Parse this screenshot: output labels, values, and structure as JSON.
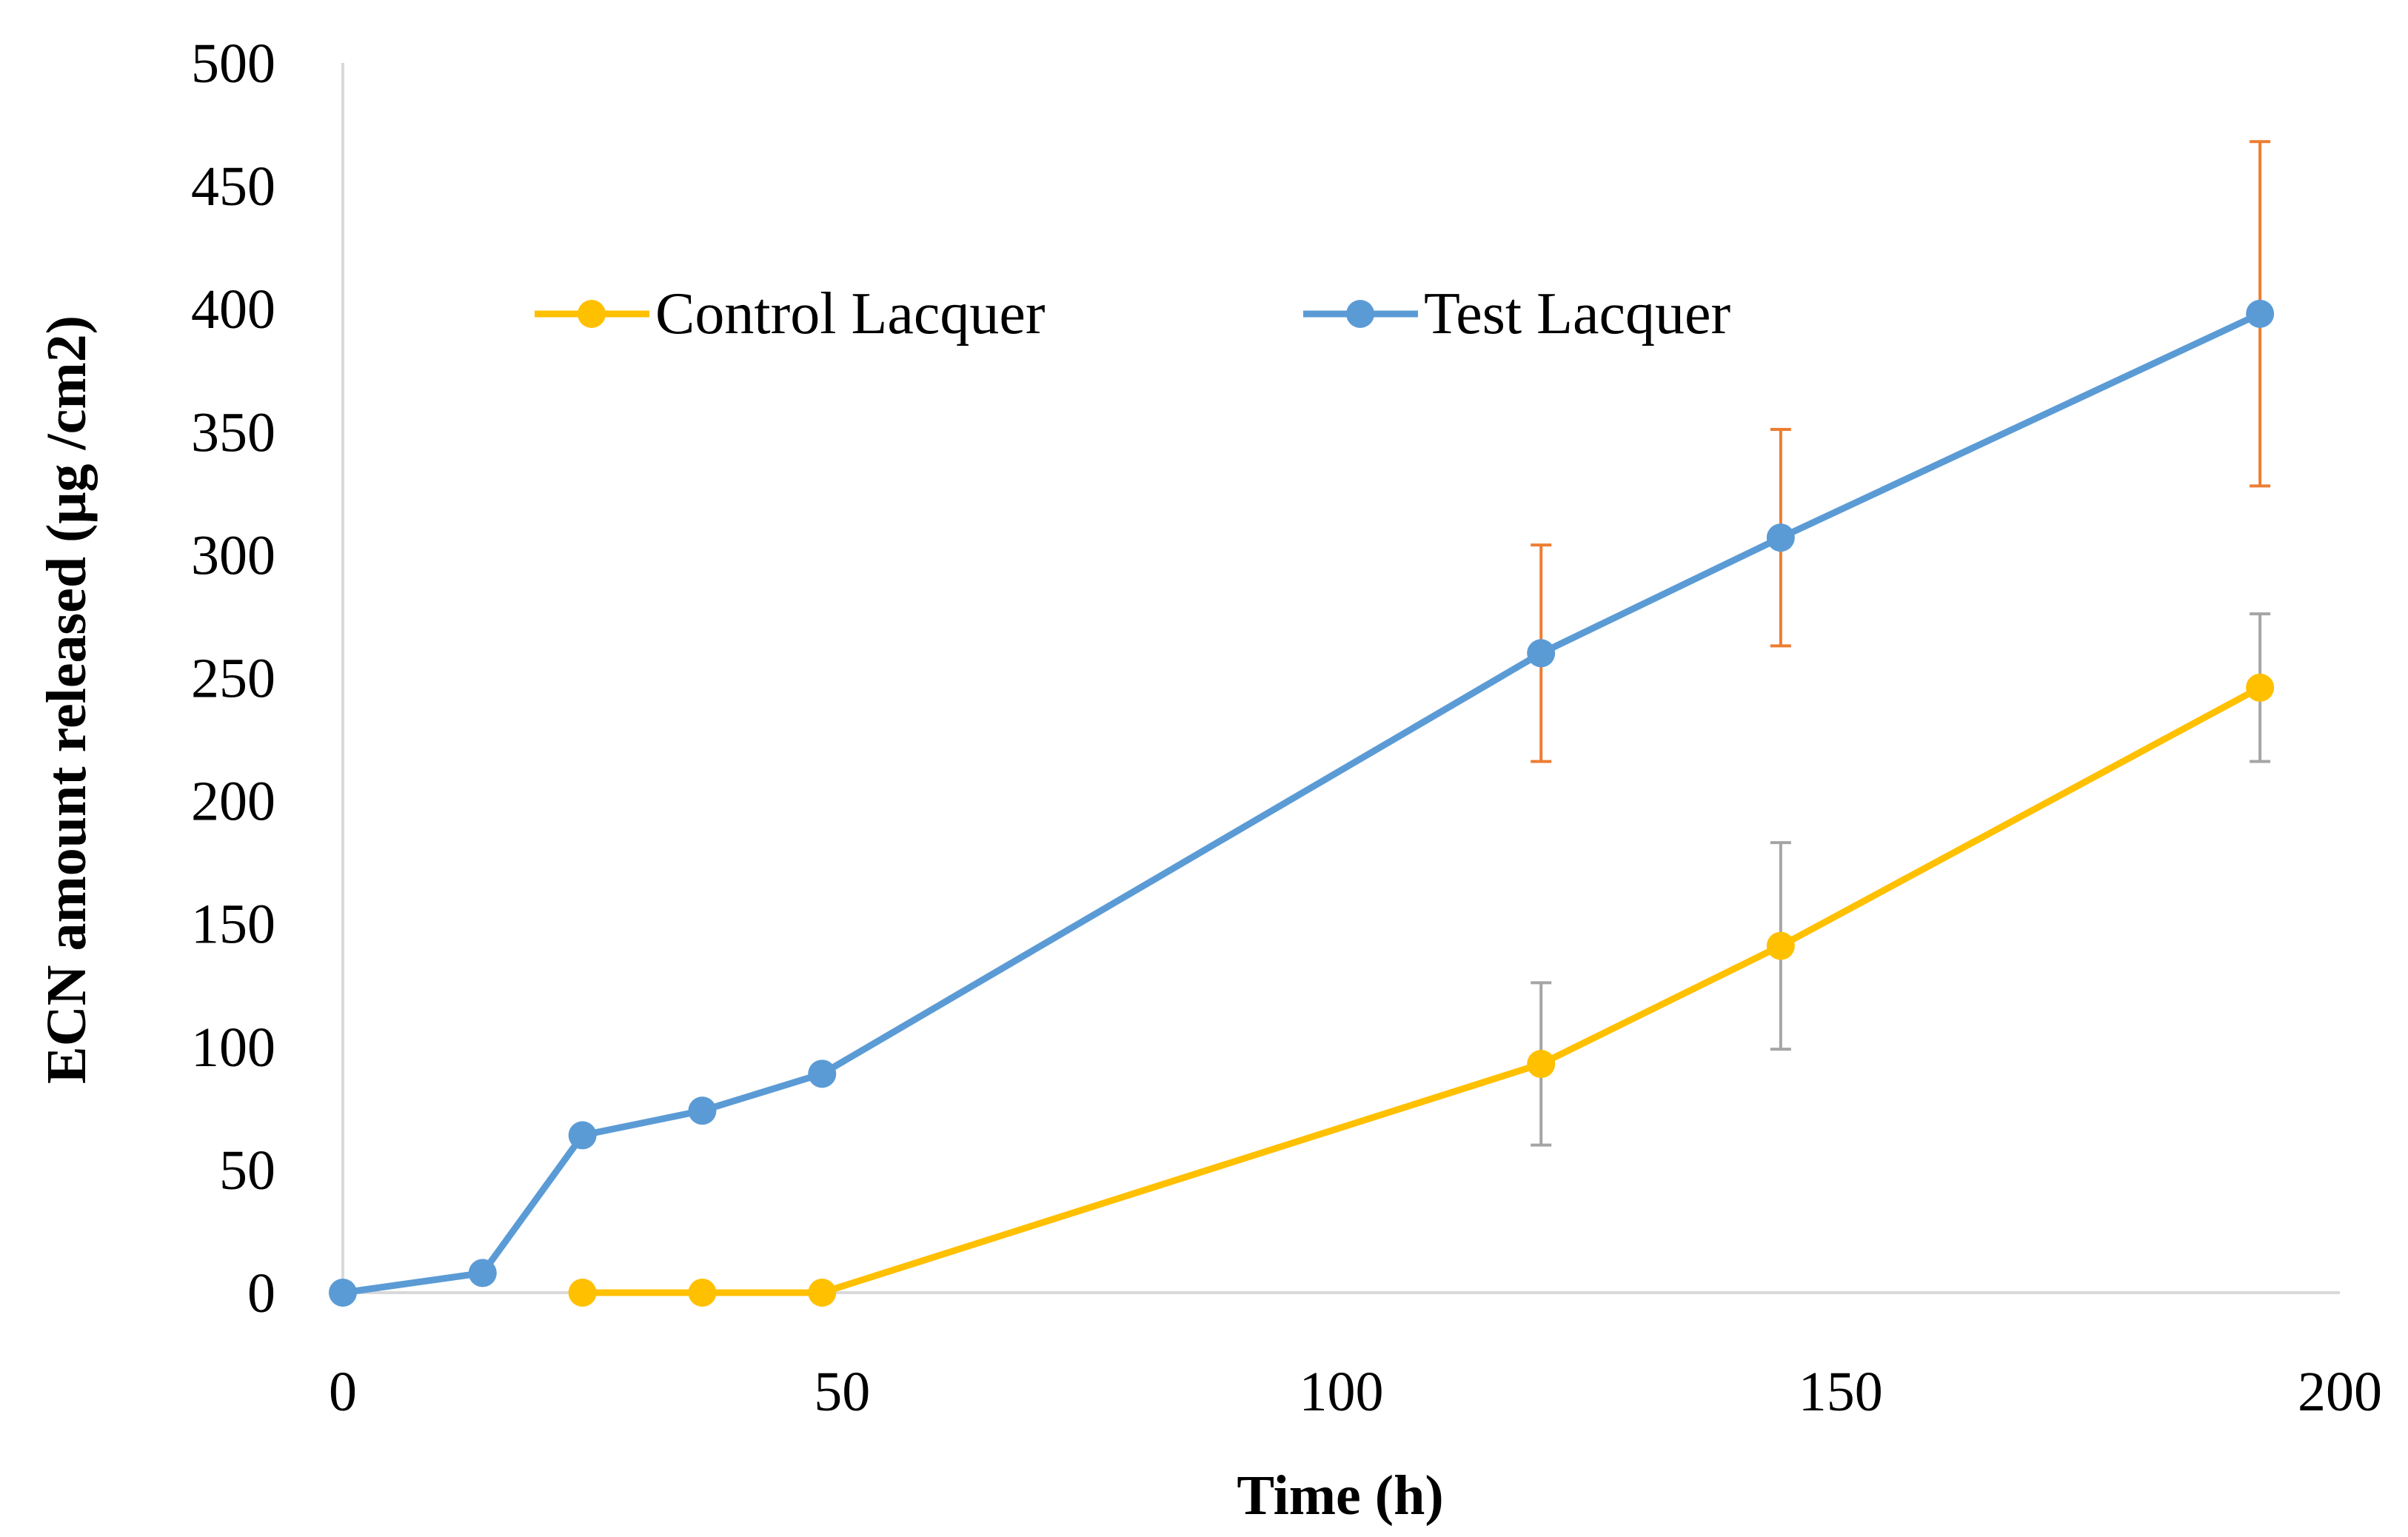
{
  "colors": {
    "control": "#FFC000",
    "test": "#5B9BD5",
    "error_test": "#ED7D31",
    "error_control": "#A5A5A5",
    "axis": "#D9D9D9",
    "text": "#000000"
  },
  "chart_data": {
    "type": "line",
    "title": "",
    "xlabel": "Time (h)",
    "ylabel": "ECN amount released (μg /cm2)",
    "xlim": [
      0,
      200
    ],
    "ylim": [
      0,
      500
    ],
    "xticks": [
      0,
      50,
      100,
      150,
      200
    ],
    "yticks": [
      0,
      50,
      100,
      150,
      200,
      250,
      300,
      350,
      400,
      450,
      500
    ],
    "grid": false,
    "legend_position": "top-left",
    "series": [
      {
        "name": "Control Lacquer",
        "color_key": "control",
        "error_color_key": "error_control",
        "x": [
          24,
          36,
          48,
          120,
          144,
          192
        ],
        "y": [
          0,
          0,
          0,
          93,
          141,
          246
        ],
        "err": [
          0,
          0,
          0,
          33,
          42,
          30
        ]
      },
      {
        "name": "Test Lacquer",
        "color_key": "test",
        "error_color_key": "error_test",
        "x": [
          0,
          14,
          24,
          36,
          48,
          120,
          144,
          192
        ],
        "y": [
          0,
          8,
          64,
          74,
          89,
          260,
          307,
          398
        ],
        "err": [
          0,
          0,
          0,
          0,
          0,
          44,
          44,
          70
        ]
      }
    ]
  }
}
